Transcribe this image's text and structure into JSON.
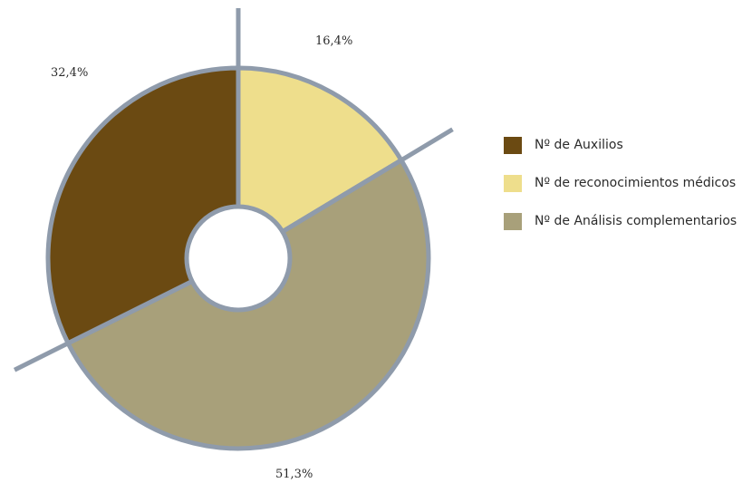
{
  "chart_data": {
    "type": "pie",
    "variant": "donut",
    "categories": [
      "Nº de Auxilios",
      "Nº de reconocimientos médicos",
      "Nº de Análisis complementarios"
    ],
    "values": [
      32.4,
      16.4,
      51.3
    ],
    "value_labels": [
      "32,4%",
      "16,4%",
      "51,3%"
    ],
    "colors": [
      "#6b4a12",
      "#eede8c",
      "#a8a07a"
    ],
    "border_color": "#8f9bab",
    "legend_position": "right"
  }
}
